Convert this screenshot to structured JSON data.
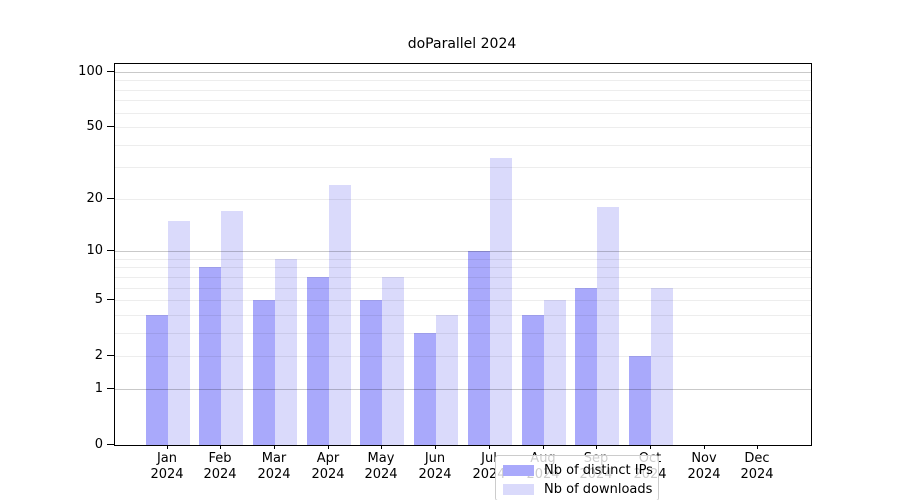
{
  "chart_data": {
    "type": "bar",
    "title": "doParallel 2024",
    "categories": [
      "Jan",
      "Feb",
      "Mar",
      "Apr",
      "May",
      "Jun",
      "Jul",
      "Aug",
      "Sep",
      "Oct",
      "Nov",
      "Dec"
    ],
    "category_year": "2024",
    "series": [
      {
        "name": "Nb of distinct IPs",
        "color": "#a9a9fb",
        "values": [
          4,
          8,
          5,
          7,
          5,
          3,
          10,
          4,
          6,
          2,
          0,
          0
        ]
      },
      {
        "name": "Nb of downloads",
        "color": "#dadafb",
        "values": [
          15,
          17,
          9,
          24,
          7,
          4,
          34,
          5,
          18,
          6,
          0,
          0
        ]
      }
    ],
    "yscale": "log1p",
    "ylim": [
      0,
      110
    ],
    "y_ticks": [
      100,
      50,
      20,
      10,
      5,
      2,
      1,
      0
    ],
    "y_major_gridlines": [
      1,
      10,
      100
    ],
    "y_minor_gridlines": [
      2,
      3,
      4,
      5,
      6,
      7,
      8,
      9,
      20,
      30,
      40,
      50,
      60,
      70,
      80,
      90
    ],
    "legend_position": "lower center",
    "grid": true,
    "background": "#ffffff",
    "text_color": "#000000"
  }
}
